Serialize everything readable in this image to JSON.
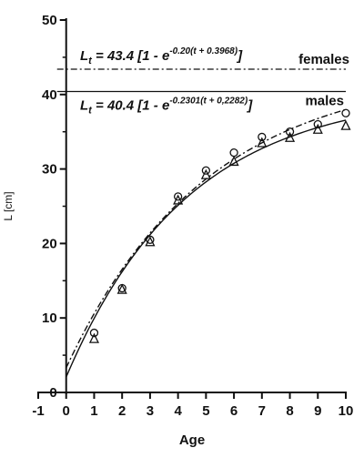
{
  "chart_data": {
    "type": "scatter",
    "xlabel": "Age",
    "ylabel": "L [cm]",
    "xlim": [
      -1,
      10
    ],
    "ylim": [
      0,
      50
    ],
    "xticks": [
      "-1",
      "0",
      "1",
      "2",
      "3",
      "4",
      "5",
      "6",
      "7",
      "8",
      "9",
      "10"
    ],
    "yticks": [
      "0",
      "10",
      "20",
      "30",
      "40",
      "50"
    ],
    "asymptotes": [
      {
        "label": "females",
        "value": 43.4,
        "style": "dash-dot"
      },
      {
        "label": "males",
        "value": 40.4,
        "style": "solid"
      }
    ],
    "equations": {
      "females": {
        "lhs": "L",
        "lhs_sub": "t",
        "body": " = 43.4 [1 - e",
        "exponent": "-0.20(t + 0.3968)",
        "close": "]"
      },
      "males": {
        "lhs": "L",
        "lhs_sub": "t",
        "body": " = 40.4 [1 - e",
        "exponent": "-0.2301(t + 0,2282)",
        "close": "]"
      }
    },
    "series": [
      {
        "name": "females",
        "marker": "circle",
        "line_style": "dash-dot",
        "model": {
          "Linf": 43.4,
          "k": 0.2,
          "t0": -0.3968
        },
        "points": [
          {
            "x": 1,
            "y": 8
          },
          {
            "x": 2,
            "y": 14
          },
          {
            "x": 3,
            "y": 20.5
          },
          {
            "x": 4,
            "y": 26.3
          },
          {
            "x": 5,
            "y": 29.8
          },
          {
            "x": 6,
            "y": 32.2
          },
          {
            "x": 7,
            "y": 34.3
          },
          {
            "x": 8,
            "y": 35
          },
          {
            "x": 9,
            "y": 36
          },
          {
            "x": 10,
            "y": 37.5
          }
        ]
      },
      {
        "name": "males",
        "marker": "triangle",
        "line_style": "solid",
        "model": {
          "Linf": 40.4,
          "k": 0.2301,
          "t0": -0.2282
        },
        "points": [
          {
            "x": 1,
            "y": 7.2
          },
          {
            "x": 2,
            "y": 13.8
          },
          {
            "x": 3,
            "y": 20.2
          },
          {
            "x": 4,
            "y": 25.8
          },
          {
            "x": 5,
            "y": 29.2
          },
          {
            "x": 6,
            "y": 31
          },
          {
            "x": 7,
            "y": 33.5
          },
          {
            "x": 8,
            "y": 34.2
          },
          {
            "x": 9,
            "y": 35.3
          },
          {
            "x": 10,
            "y": 35.8
          }
        ]
      }
    ]
  }
}
